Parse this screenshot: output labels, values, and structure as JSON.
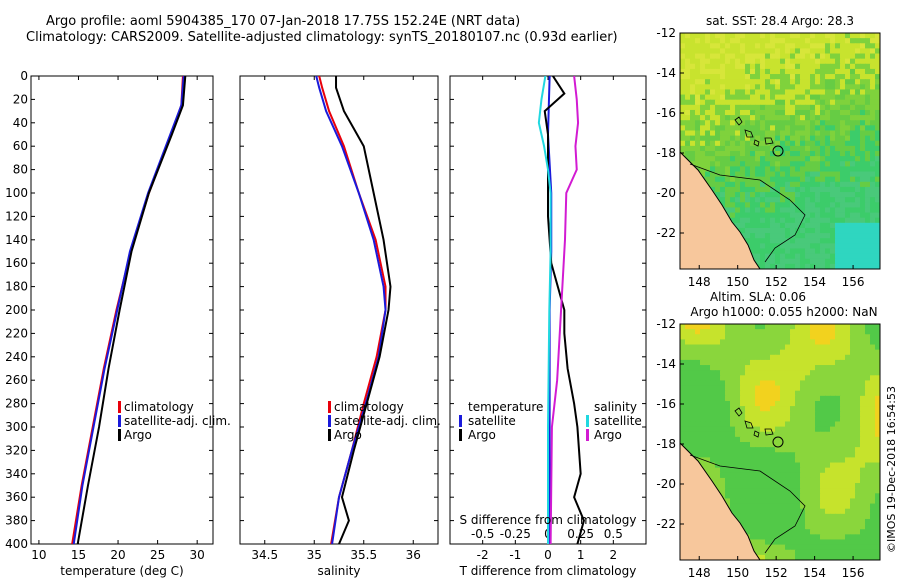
{
  "header": {
    "line1": "Argo profile: aoml 5904385_170 07-Jan-2018 17.75S 152.24E (NRT data)",
    "line2": "Climatology: CARS2009. Satellite-adjusted climatology: synTS_20180107.nc (0.93d earlier)"
  },
  "colors": {
    "climatology": "#e8000b",
    "satellite": "#1a1adb",
    "argo": "#000000",
    "s_argo": "#d21bd2",
    "s_satellite": "#21d8e0",
    "land": "#f7c79c"
  },
  "chart_data": [
    {
      "type": "line",
      "name": "temperature-profile",
      "xlabel": "temperature (deg C)",
      "ylabel": "",
      "xlim": [
        9,
        32
      ],
      "ylim": [
        0,
        400
      ],
      "xticks": [
        10,
        15,
        20,
        25,
        30
      ],
      "yticks": [
        0,
        20,
        40,
        60,
        80,
        100,
        120,
        140,
        160,
        180,
        200,
        220,
        240,
        260,
        280,
        300,
        320,
        340,
        360,
        380,
        400
      ],
      "legend": [
        "climatology",
        "satellite-adj. clim.",
        "Argo"
      ],
      "series": [
        {
          "name": "climatology",
          "depth": [
            0,
            25,
            50,
            100,
            150,
            200,
            250,
            300,
            350,
            400
          ],
          "values": [
            28.2,
            28.0,
            26.7,
            23.9,
            21.6,
            19.8,
            18.2,
            16.8,
            15.4,
            14.2
          ]
        },
        {
          "name": "satellite-adj. clim.",
          "depth": [
            0,
            25,
            50,
            100,
            150,
            200,
            250,
            300,
            350,
            400
          ],
          "values": [
            28.3,
            28.0,
            26.6,
            23.8,
            21.5,
            19.9,
            18.3,
            16.9,
            15.5,
            14.4
          ]
        },
        {
          "name": "Argo",
          "depth": [
            0,
            25,
            50,
            100,
            150,
            200,
            250,
            300,
            350,
            400
          ],
          "values": [
            28.5,
            28.2,
            26.8,
            23.9,
            21.7,
            20.2,
            18.8,
            17.6,
            16.2,
            14.9
          ]
        }
      ]
    },
    {
      "type": "line",
      "name": "salinity-profile",
      "xlabel": "salinity",
      "xlim": [
        34.25,
        36.25
      ],
      "ylim": [
        0,
        400
      ],
      "xticks": [
        34.5,
        35,
        35.5,
        36
      ],
      "legend": [
        "climatology",
        "satellite-adj. clim.",
        "Argo"
      ],
      "series": [
        {
          "name": "climatology",
          "depth": [
            0,
            10,
            30,
            60,
            100,
            140,
            180,
            200,
            240,
            280,
            320,
            360,
            400
          ],
          "values": [
            35.05,
            35.08,
            35.15,
            35.3,
            35.45,
            35.62,
            35.72,
            35.72,
            35.63,
            35.5,
            35.38,
            35.25,
            35.17
          ]
        },
        {
          "name": "satellite-adj. clim.",
          "depth": [
            0,
            10,
            30,
            60,
            100,
            140,
            180,
            200,
            240,
            280,
            320,
            360,
            400
          ],
          "values": [
            35.02,
            35.05,
            35.12,
            35.28,
            35.45,
            35.6,
            35.7,
            35.72,
            35.65,
            35.52,
            35.38,
            35.25,
            35.18
          ]
        },
        {
          "name": "Argo",
          "depth": [
            0,
            10,
            30,
            60,
            100,
            140,
            180,
            200,
            240,
            280,
            320,
            360,
            380,
            400
          ],
          "values": [
            35.22,
            35.22,
            35.3,
            35.5,
            35.6,
            35.7,
            35.77,
            35.75,
            35.66,
            35.53,
            35.4,
            35.28,
            35.35,
            35.25
          ]
        }
      ]
    },
    {
      "type": "line",
      "name": "difference-profile",
      "xlabel": "T difference from climatology",
      "top_axis_label": "S difference from climatology",
      "xlim": [
        -3,
        3
      ],
      "ylim": [
        0,
        400
      ],
      "xticks": [
        -2,
        -1,
        0,
        1,
        2
      ],
      "s_xticks": [
        "-0.5",
        "-0.25",
        "0",
        "0.25",
        "0.5"
      ],
      "legend_temperature": {
        "title": "temperature",
        "items": [
          "satellite",
          "Argo"
        ]
      },
      "legend_salinity": {
        "title": "salinity",
        "items": [
          "satellite",
          "Argo"
        ]
      },
      "series": [
        {
          "name": "T satellite",
          "depth": [
            0,
            50,
            100,
            150,
            200,
            250,
            300,
            350,
            400
          ],
          "values": [
            0.05,
            0.0,
            0.1,
            0.1,
            0.05,
            0.05,
            0.05,
            0.05,
            0.05
          ]
        },
        {
          "name": "T Argo",
          "depth": [
            0,
            15,
            30,
            50,
            80,
            120,
            160,
            200,
            220,
            250,
            280,
            300,
            340,
            360,
            380,
            400
          ],
          "values": [
            0.15,
            0.5,
            -0.1,
            0.0,
            0.0,
            0.0,
            0.1,
            0.5,
            0.5,
            0.6,
            0.8,
            0.9,
            1.0,
            0.8,
            1.1,
            0.9
          ]
        },
        {
          "name": "S satellite",
          "depth": [
            0,
            20,
            40,
            60,
            80,
            100,
            150,
            200,
            300,
            400
          ],
          "values": [
            -0.02,
            -0.05,
            -0.07,
            -0.03,
            0.0,
            0.02,
            0.02,
            0.01,
            0.0,
            0.0
          ]
        },
        {
          "name": "S Argo",
          "depth": [
            0,
            20,
            40,
            60,
            80,
            100,
            140,
            200,
            240,
            260,
            300,
            400
          ],
          "values": [
            0.2,
            0.22,
            0.23,
            0.21,
            0.22,
            0.14,
            0.13,
            0.1,
            0.08,
            0.07,
            0.03,
            0.02
          ]
        }
      ]
    },
    {
      "type": "heatmap",
      "name": "sst-map",
      "title": "sat. SST: 28.4 Argo: 28.3",
      "xlim": [
        147,
        157.4
      ],
      "ylim": [
        -23.8,
        -12
      ],
      "xticks": [
        148,
        150,
        152,
        154,
        156
      ],
      "yticks": [
        -12,
        -14,
        -16,
        -18,
        -20,
        -22
      ]
    },
    {
      "type": "heatmap",
      "name": "sla-map",
      "title": "Altim. SLA: 0.06",
      "subtitle": "Argo h1000: 0.055 h2000: NaN",
      "xlim": [
        147,
        157.4
      ],
      "ylim": [
        -23.8,
        -12
      ],
      "xticks": [
        148,
        150,
        152,
        154,
        156
      ],
      "yticks": [
        -12,
        -14,
        -16,
        -18,
        -20,
        -22
      ]
    }
  ],
  "footer": {
    "credit": "©IMOS 19-Dec-2018 16:54:53"
  }
}
